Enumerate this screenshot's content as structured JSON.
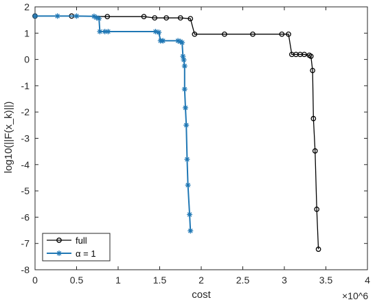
{
  "chart_data": {
    "type": "line",
    "title": "",
    "xlabel": "cost",
    "ylabel": "log10(||F(x_k)||)",
    "x_multiplier": "×10^6",
    "xlim": [
      0,
      4
    ],
    "ylim": [
      -8,
      2
    ],
    "x_ticks": [
      0,
      0.5,
      1,
      1.5,
      2,
      2.5,
      3,
      3.5,
      4
    ],
    "x_tick_labels": [
      "0",
      "0.5",
      "1",
      "1.5",
      "2",
      "2.5",
      "3",
      "3.5",
      "4"
    ],
    "y_ticks": [
      -8,
      -7,
      -6,
      -5,
      -4,
      -3,
      -2,
      -1,
      0,
      1,
      2
    ],
    "y_tick_labels": [
      "-8",
      "-7",
      "-6",
      "-5",
      "-4",
      "-3",
      "-2",
      "-1",
      "0",
      "1",
      "2"
    ],
    "grid": false,
    "legend_position": "bottom-left",
    "series": [
      {
        "name": "full",
        "color": "#000000",
        "marker": "circle",
        "x": [
          0.0,
          0.44,
          0.87,
          1.31,
          1.44,
          1.58,
          1.75,
          1.87,
          1.92,
          2.28,
          2.62,
          2.97,
          3.05,
          3.09,
          3.14,
          3.19,
          3.24,
          3.3,
          3.32,
          3.34,
          3.35,
          3.37,
          3.39,
          3.41
        ],
        "y": [
          1.65,
          1.65,
          1.63,
          1.63,
          1.58,
          1.58,
          1.58,
          1.55,
          0.96,
          0.96,
          0.96,
          0.96,
          0.96,
          0.19,
          0.19,
          0.19,
          0.19,
          0.16,
          0.12,
          -0.42,
          -2.25,
          -3.48,
          -5.7,
          -7.22
        ]
      },
      {
        "name": "α = 1",
        "color": "#1f77b4",
        "marker": "star",
        "x": [
          0.0,
          0.27,
          0.5,
          0.71,
          0.74,
          0.77,
          0.78,
          0.84,
          0.88,
          1.45,
          1.49,
          1.51,
          1.54,
          1.72,
          1.75,
          1.77,
          1.78,
          1.79,
          1.8,
          1.8,
          1.81,
          1.82,
          1.83,
          1.84,
          1.86,
          1.87
        ],
        "y": [
          1.65,
          1.65,
          1.65,
          1.64,
          1.59,
          1.56,
          1.06,
          1.06,
          1.06,
          1.06,
          1.03,
          0.71,
          0.71,
          0.71,
          0.68,
          0.64,
          0.12,
          -0.02,
          -0.25,
          -1.13,
          -1.84,
          -2.5,
          -3.8,
          -4.78,
          -5.9,
          -6.52
        ]
      }
    ]
  }
}
